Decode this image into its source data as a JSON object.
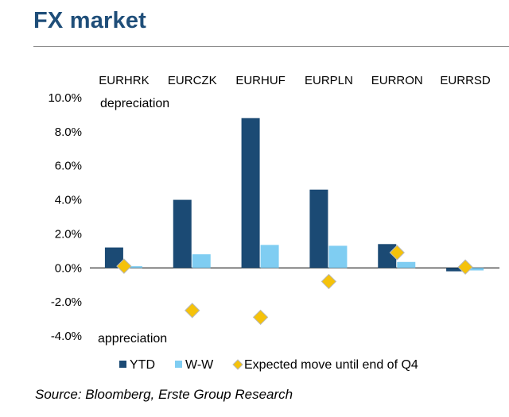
{
  "page": {
    "title": "FX market",
    "source": "Source: Bloomberg, Erste Group Research"
  },
  "chart_data": {
    "type": "bar",
    "categories": [
      "EURHRK",
      "EURCZK",
      "EURHUF",
      "EURPLN",
      "EURRON",
      "EURRSD"
    ],
    "series": [
      {
        "name": "YTD",
        "kind": "bar",
        "color": "#1b4a74",
        "values": [
          1.2,
          4.0,
          8.8,
          4.6,
          1.4,
          -0.2
        ]
      },
      {
        "name": "W-W",
        "kind": "bar",
        "color": "#7fcdf2",
        "values": [
          0.1,
          0.8,
          1.35,
          1.3,
          0.35,
          -0.15
        ]
      },
      {
        "name": "Expected move until end of Q4",
        "kind": "marker",
        "color": "#f5c20a",
        "values": [
          0.1,
          -2.5,
          -2.9,
          -0.8,
          0.9,
          0.05
        ]
      }
    ],
    "ylim": [
      -4,
      10
    ],
    "yticks": [
      -4,
      -2,
      0,
      2,
      4,
      6,
      8,
      10
    ],
    "ytick_labels": [
      "-4.0%",
      "-2.0%",
      "0.0%",
      "2.0%",
      "4.0%",
      "6.0%",
      "8.0%",
      "10.0%"
    ],
    "annotations": {
      "top": "depreciation",
      "bottom": "appreciation"
    },
    "legend_position": "bottom",
    "grid": false
  }
}
